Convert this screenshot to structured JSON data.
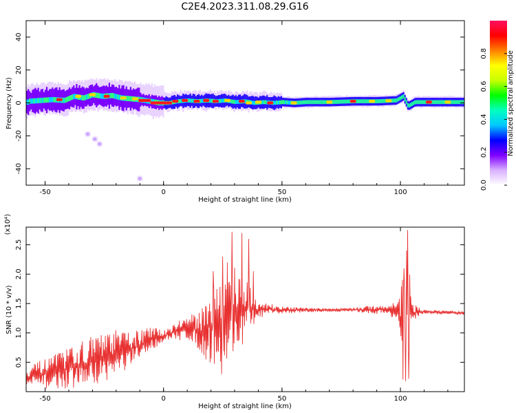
{
  "title": "C2E4.2023.311.08.29.G16",
  "chart_data": [
    {
      "type": "heatmap",
      "xlabel": "Height of straight line (km)",
      "ylabel": "Frequency (Hz)",
      "xlim": [
        -58,
        127
      ],
      "ylim": [
        -50,
        50
      ],
      "xticks": [
        -50,
        0,
        50,
        100
      ],
      "yticks": [
        40,
        20,
        0,
        -20,
        -40
      ],
      "colorbar": {
        "label": "Normalized spectral amplitude",
        "range": [
          0.0,
          1.0
        ],
        "ticks": [
          0.0,
          0.2,
          0.4,
          0.6,
          0.8
        ],
        "tick_labels": [
          "0.0",
          "0.2",
          "0.4",
          "0.6",
          "0.8"
        ],
        "colormap": [
          "#ffffff",
          "#d8b0ff",
          "#8000ff",
          "#0000ff",
          "#00c8ff",
          "#00ffc0",
          "#00ff00",
          "#c8ff00",
          "#ffff00",
          "#ff8000",
          "#ff0000",
          "#ff1060"
        ]
      },
      "ridge": [
        [
          -57,
          1
        ],
        [
          -52,
          1.5
        ],
        [
          -47,
          2
        ],
        [
          -42,
          1.5
        ],
        [
          -38,
          4
        ],
        [
          -34,
          3
        ],
        [
          -30,
          5
        ],
        [
          -26,
          4
        ],
        [
          -22,
          4.5
        ],
        [
          -18,
          3
        ],
        [
          -14,
          2.5
        ],
        [
          -10,
          2
        ],
        [
          -6,
          1
        ],
        [
          -2,
          0
        ],
        [
          2,
          0
        ],
        [
          6,
          1
        ],
        [
          10,
          1.5
        ],
        [
          14,
          1
        ],
        [
          18,
          1.5
        ],
        [
          22,
          1
        ],
        [
          26,
          1.5
        ],
        [
          30,
          0.5
        ],
        [
          34,
          1
        ],
        [
          38,
          0
        ],
        [
          42,
          0.5
        ],
        [
          46,
          0
        ],
        [
          50,
          0.5
        ],
        [
          55,
          0
        ],
        [
          60,
          0.5
        ],
        [
          70,
          0.5
        ],
        [
          80,
          1
        ],
        [
          90,
          1
        ],
        [
          98,
          1.5
        ],
        [
          101,
          4
        ],
        [
          103,
          -2
        ],
        [
          106,
          0.5
        ],
        [
          115,
          0.5
        ],
        [
          127,
          0.5
        ]
      ],
      "scatter_blobs": [
        [
          -32,
          -19
        ],
        [
          -29,
          -22
        ],
        [
          -27,
          -25
        ],
        [
          -10,
          -46
        ]
      ]
    },
    {
      "type": "line",
      "xlabel": "Height of straight line (km)",
      "ylabel": "SNR (10 * v/v)",
      "y_multiplier": "(x10⁴)",
      "xlim": [
        -58,
        127
      ],
      "ylim": [
        0.0,
        2.8
      ],
      "xticks": [
        -50,
        0,
        50,
        100
      ],
      "yticks": [
        0.5,
        1.0,
        1.5,
        2.0,
        2.5
      ],
      "ytick_labels": [
        "0.5",
        "1.0",
        "1.5",
        "2.0",
        "2.5"
      ],
      "color": "#e83030",
      "envelope": [
        [
          -58,
          0.05,
          0.45
        ],
        [
          -50,
          0.05,
          0.55
        ],
        [
          -40,
          0.05,
          0.75
        ],
        [
          -30,
          0.1,
          0.95
        ],
        [
          -20,
          0.25,
          1.05
        ],
        [
          -12,
          0.45,
          1.05
        ],
        [
          -5,
          0.7,
          1.1
        ],
        [
          0,
          0.85,
          1.05
        ],
        [
          5,
          0.85,
          1.2
        ],
        [
          10,
          0.9,
          1.3
        ],
        [
          15,
          0.7,
          1.35
        ],
        [
          20,
          0.45,
          1.8
        ],
        [
          25,
          0.4,
          1.9
        ],
        [
          30,
          0.6,
          2.2
        ],
        [
          35,
          0.9,
          1.9
        ],
        [
          40,
          1.25,
          1.55
        ],
        [
          45,
          1.3,
          1.5
        ],
        [
          50,
          1.33,
          1.45
        ],
        [
          60,
          1.35,
          1.43
        ],
        [
          70,
          1.36,
          1.42
        ],
        [
          80,
          1.36,
          1.43
        ],
        [
          95,
          1.3,
          1.5
        ],
        [
          99,
          1.2,
          1.55
        ],
        [
          101,
          0.2,
          2.1
        ],
        [
          103,
          0.2,
          2.75
        ],
        [
          105,
          1.2,
          1.5
        ],
        [
          110,
          1.32,
          1.4
        ],
        [
          127,
          1.31,
          1.36
        ]
      ],
      "spikes": [
        [
          21,
          2.05
        ],
        [
          25,
          2.3
        ],
        [
          27,
          2.2
        ],
        [
          29,
          2.72
        ],
        [
          33,
          2.7
        ],
        [
          36,
          2.6
        ],
        [
          38,
          2.05
        ],
        [
          103,
          2.75
        ],
        [
          101.5,
          2.1
        ],
        [
          102.2,
          0.18
        ],
        [
          103.5,
          0.22
        ],
        [
          24.5,
          0.3
        ],
        [
          18,
          0.55
        ]
      ]
    }
  ]
}
